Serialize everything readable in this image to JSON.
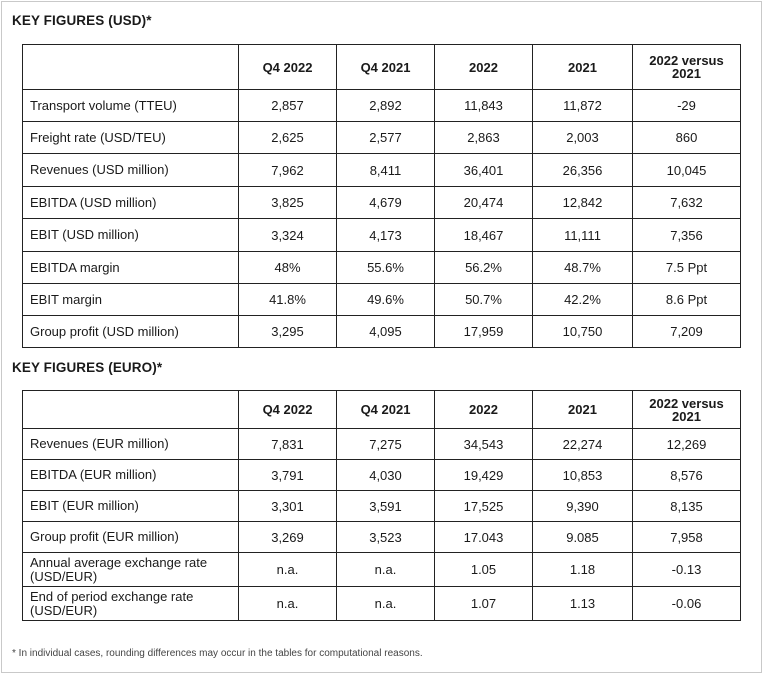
{
  "usd": {
    "title": "KEY FIGURES (USD)*",
    "headers": [
      "Q4 2022",
      "Q4 2021",
      "2022",
      "2021",
      "2022 versus 2021"
    ],
    "rows": [
      {
        "label": "Transport volume (TTEU)",
        "values": [
          "2,857",
          "2,892",
          "11,843",
          "11,872",
          "-29"
        ]
      },
      {
        "label": "Freight rate (USD/TEU)",
        "values": [
          "2,625",
          "2,577",
          "2,863",
          "2,003",
          "860"
        ]
      },
      {
        "label": "Revenues (USD million)",
        "values": [
          "7,962",
          "8,411",
          "36,401",
          "26,356",
          "10,045"
        ]
      },
      {
        "label": "EBITDA (USD million)",
        "values": [
          "3,825",
          "4,679",
          "20,474",
          "12,842",
          "7,632"
        ]
      },
      {
        "label": "EBIT (USD million)",
        "values": [
          "3,324",
          "4,173",
          "18,467",
          "11,111",
          "7,356"
        ]
      },
      {
        "label": "EBITDA margin",
        "values": [
          "48%",
          "55.6%",
          "56.2%",
          "48.7%",
          "7.5 Ppt"
        ]
      },
      {
        "label": "EBIT margin",
        "values": [
          "41.8%",
          "49.6%",
          "50.7%",
          "42.2%",
          "8.6 Ppt"
        ]
      },
      {
        "label": "Group profit (USD million)",
        "values": [
          "3,295",
          "4,095",
          "17,959",
          "10,750",
          "7,209"
        ]
      }
    ]
  },
  "eur": {
    "title": "KEY FIGURES (EURO)*",
    "headers": [
      "Q4 2022",
      "Q4 2021",
      "2022",
      "2021",
      "2022 versus 2021"
    ],
    "rows": [
      {
        "label": "Revenues (EUR million)",
        "values": [
          "7,831",
          "7,275",
          "34,543",
          "22,274",
          "12,269"
        ]
      },
      {
        "label": "EBITDA (EUR million)",
        "values": [
          "3,791",
          "4,030",
          "19,429",
          "10,853",
          "8,576"
        ]
      },
      {
        "label": "EBIT (EUR million)",
        "values": [
          "3,301",
          "3,591",
          "17,525",
          "9,390",
          "8,135"
        ]
      },
      {
        "label": "Group profit (EUR million)",
        "values": [
          "3,269",
          "3,523",
          "17.043",
          "9.085",
          "7,958"
        ]
      },
      {
        "label": "Annual average exchange rate (USD/EUR)",
        "values": [
          "n.a.",
          "n.a.",
          "1.05",
          "1.18",
          "-0.13"
        ]
      },
      {
        "label": "End of period exchange rate (USD/EUR)",
        "values": [
          "n.a.",
          "n.a.",
          "1.07",
          "1.13",
          "-0.06"
        ]
      }
    ]
  },
  "footnote": "* In individual cases, rounding differences may occur in the tables for computational reasons."
}
